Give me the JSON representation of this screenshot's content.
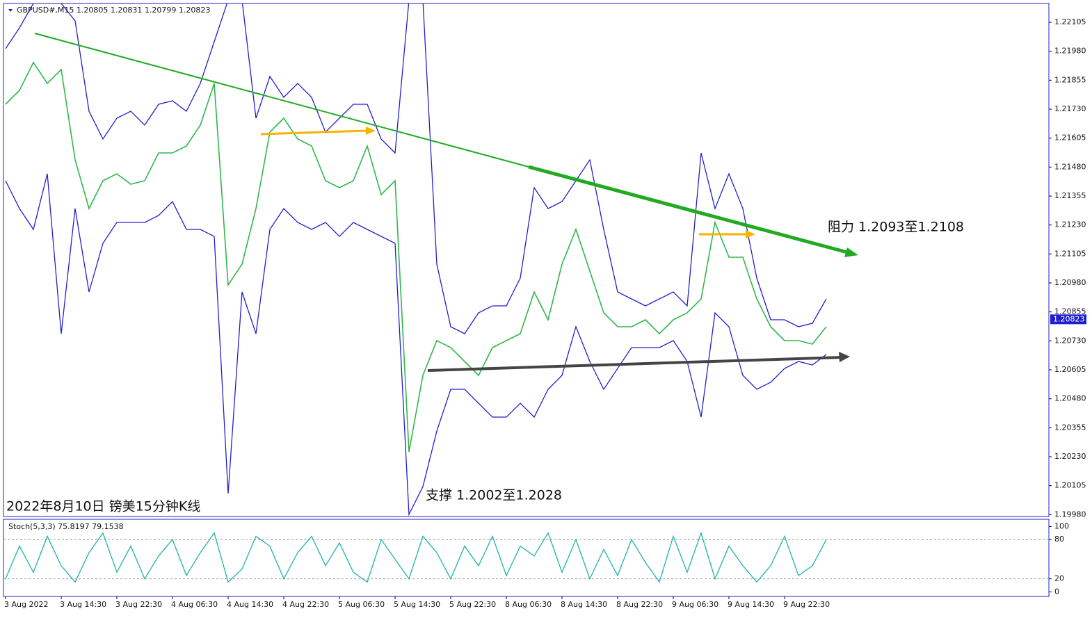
{
  "chart_data": [
    {
      "type": "line",
      "title": "GBPUSD#,M15  1.20805 1.20831 1.20799 1.20823",
      "annotations": [
        "阻力 1.2093至1.2108",
        "支撑 1.2002至1.2028",
        "2022年8月10日 镑美15分钟K线"
      ],
      "last_price": 1.20823,
      "categories": [
        "3 Aug 2022",
        null,
        null,
        null,
        "3 Aug 14:30",
        null,
        null,
        null,
        "3 Aug 22:30",
        null,
        null,
        null,
        "4 Aug 06:30",
        null,
        null,
        null,
        "4 Aug 14:30",
        null,
        null,
        null,
        "4 Aug 22:30",
        null,
        null,
        null,
        "5 Aug 06:30",
        null,
        null,
        null,
        "5 Aug 14:30",
        null,
        null,
        null,
        "5 Aug 22:30",
        null,
        null,
        null,
        "8 Aug 06:30",
        null,
        null,
        null,
        "8 Aug 14:30",
        null,
        null,
        null,
        "8 Aug 22:30",
        null,
        null,
        null,
        "9 Aug 06:30",
        null,
        null,
        null,
        "9 Aug 14:30",
        null,
        null,
        null,
        "9 Aug 22:30",
        null,
        null,
        null
      ],
      "series": [
        {
          "color": "#2fb84a",
          "values": [
            1.21751,
            1.21811,
            1.21931,
            1.21841,
            1.21901,
            1.21511,
            1.21301,
            1.21421,
            1.21451,
            1.21406,
            1.21421,
            1.21541,
            1.21541,
            1.21571,
            1.21661,
            1.21841,
            1.20971,
            1.21061,
            1.21301,
            1.21631,
            1.21691,
            1.21601,
            1.21571,
            1.21421,
            1.21391,
            1.21421,
            1.21571,
            1.21361,
            1.21421,
            1.20251,
            1.20581,
            1.20731,
            1.20701,
            1.20641,
            1.20581,
            1.20701,
            1.20731,
            1.20761,
            1.20941,
            1.20821,
            1.21061,
            1.21211,
            1.21031,
            1.20851,
            1.20791,
            1.20791,
            1.20821,
            1.20761,
            1.20821,
            1.20851,
            1.20911,
            1.21241,
            1.21091,
            1.21091,
            1.20911,
            1.20791,
            1.20731,
            1.20731,
            1.20716,
            1.20791
          ]
        },
        {
          "color": "#1f1fd0",
          "values": [
            1.21991,
            1.22081,
            1.22186,
            1.22201,
            1.22186,
            1.22111,
            1.21721,
            1.21601,
            1.21691,
            1.21721,
            1.21661,
            1.21751,
            1.21766,
            1.21721,
            1.21841,
            1.22021,
            1.22201,
            1.22201,
            1.21691,
            1.21871,
            1.21781,
            1.21841,
            1.21781,
            1.21631,
            1.21691,
            1.21751,
            1.21751,
            1.21601,
            1.21541,
            1.22201,
            1.22201,
            1.21061,
            1.20791,
            1.20761,
            1.20851,
            1.20881,
            1.20881,
            1.21001,
            1.21391,
            1.21301,
            1.21331,
            1.21421,
            1.21511,
            1.21211,
            1.20941,
            1.20911,
            1.20881,
            1.20911,
            1.20941,
            1.20881,
            1.21541,
            1.21301,
            1.21451,
            1.21301,
            1.21001,
            1.20821,
            1.20821,
            1.20791,
            1.20806,
            1.20911
          ]
        },
        {
          "color": "#1f1fd0",
          "values": [
            1.21421,
            1.21301,
            1.21211,
            1.21451,
            1.20761,
            1.21301,
            1.20941,
            1.21151,
            1.21241,
            1.21241,
            1.21241,
            1.21271,
            1.21331,
            1.21211,
            1.21211,
            1.21181,
            1.20071,
            1.20941,
            1.20761,
            1.21211,
            1.21301,
            1.21241,
            1.21211,
            1.21241,
            1.21181,
            1.21241,
            1.21211,
            1.21181,
            1.21151,
            1.19981,
            1.20101,
            1.20341,
            1.20521,
            1.20521,
            1.20461,
            1.20401,
            1.20401,
            1.20461,
            1.20401,
            1.20521,
            1.20581,
            1.20791,
            1.20641,
            1.20521,
            1.20611,
            1.20701,
            1.20701,
            1.20701,
            1.20731,
            1.20641,
            1.20401,
            1.20851,
            1.20791,
            1.20581,
            1.20521,
            1.20551,
            1.20611,
            1.20641,
            1.20626,
            1.20671
          ]
        }
      ],
      "ylim": [
        1.19972,
        1.22186
      ],
      "yticks": [
        1.22105,
        {
          "value": 1.2198,
          "label": "1.21980"
        },
        1.21855,
        {
          "value": 1.2173,
          "label": "1.21730"
        },
        1.21605,
        {
          "value": 1.2148,
          "label": "1.21480"
        },
        1.21355,
        {
          "value": 1.2123,
          "label": "1.21230"
        },
        1.21105,
        {
          "value": 1.2098,
          "label": "1.20980"
        },
        1.20855,
        {
          "value": 1.2073,
          "label": "1.20730"
        },
        1.20605,
        {
          "value": 1.2048,
          "label": "1.20480"
        },
        1.20355,
        {
          "value": 1.2023,
          "label": "1.20230"
        },
        1.20105,
        {
          "value": 1.1998,
          "label": "1.19980"
        }
      ]
    },
    {
      "type": "line",
      "title": "Stoch(5,3,3) 75.8197 79.1538",
      "series": [
        {
          "color": "#20b2aa",
          "values": [
            20,
            70,
            30,
            85,
            40,
            15,
            60,
            90,
            30,
            70,
            20,
            55,
            80,
            25,
            60,
            90,
            15,
            35,
            85,
            70,
            20,
            60,
            85,
            40,
            75,
            30,
            15,
            80,
            50,
            20,
            85,
            60,
            20,
            70,
            40,
            85,
            25,
            70,
            55,
            90,
            30,
            80,
            20,
            65,
            25,
            80,
            45,
            15,
            85,
            30,
            90,
            20,
            70,
            40,
            15,
            40,
            85,
            25,
            40,
            80
          ]
        }
      ],
      "ylim": [
        -7,
        111
      ],
      "yticks": [
        0,
        20,
        80,
        100
      ],
      "levels": [
        20,
        80
      ]
    }
  ]
}
